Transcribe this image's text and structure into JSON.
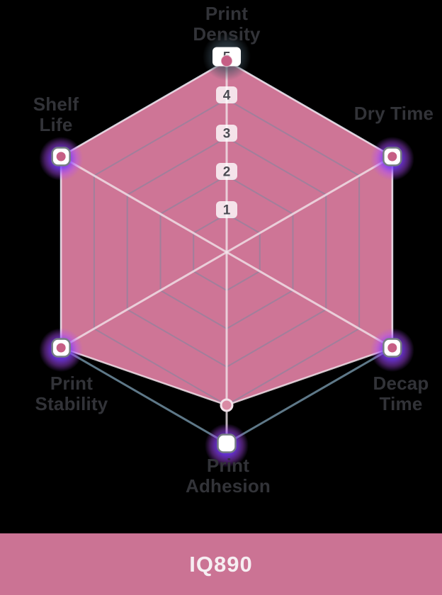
{
  "title_banner": {
    "label": "IQ890",
    "bg_color": "#cb7394",
    "text_color": "#f6eef2"
  },
  "chart_data": {
    "type": "radar",
    "title": "",
    "axes": [
      {
        "label": "Print Density",
        "lines": [
          "Print",
          "Density"
        ],
        "value": 5
      },
      {
        "label": "Dry Time",
        "lines": [
          "Dry Time"
        ],
        "value": 5
      },
      {
        "label": "Decap Time",
        "lines": [
          "Decap",
          "Time"
        ],
        "value": 5
      },
      {
        "label": "Print Adhesion",
        "lines": [
          "Print",
          "Adhesion"
        ],
        "value": 4
      },
      {
        "label": "Print Stability",
        "lines": [
          "Print",
          "Stability"
        ],
        "value": 5
      },
      {
        "label": "Shelf Life",
        "lines": [
          "Shelf",
          "Life"
        ],
        "value": 5
      }
    ],
    "series": [
      {
        "name": "IQ890",
        "values": [
          5,
          5,
          5,
          4,
          5,
          5
        ]
      }
    ],
    "scale": {
      "min": 0,
      "max": 5,
      "ticks": [
        1,
        2,
        3,
        4,
        5
      ]
    },
    "legend_position": "bottom-banner",
    "grid": true,
    "colors": {
      "fill": "#ce7596",
      "grid_inner": "#a17f9b",
      "grid_outer": "#5e7888",
      "axis_line": "#f3e7ed",
      "data_stroke": "#f8eaf1",
      "handle_fill": "#ffffff",
      "handle_border": "#757d83",
      "handle_dot": "#c65e85",
      "marker_fill": "#d98aa4",
      "marker_ring": "#f3e3ea",
      "glow_purple": "#5b2bf5",
      "glow_purple_mid": "#7a3bff",
      "glow_purple_edge": "#b44cff",
      "glow_slate": "#3c4f5c",
      "tick_box_top": "#ffffff",
      "tick_text": "#4c4b53",
      "label_text": "#323338"
    }
  }
}
